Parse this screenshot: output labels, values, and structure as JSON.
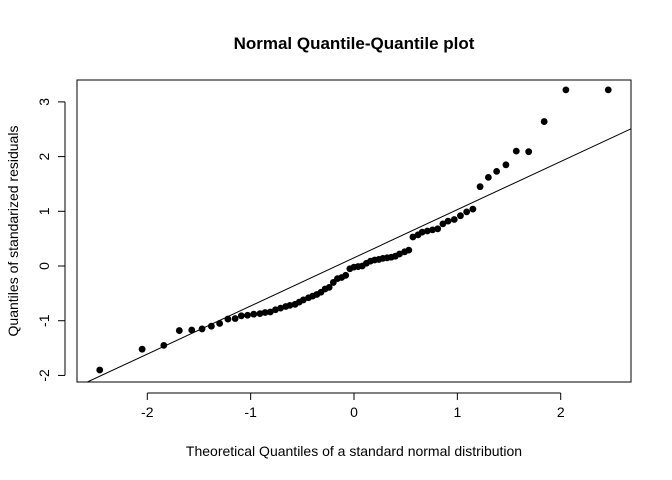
{
  "chart_data": {
    "type": "scatter",
    "title": "Normal Quantile-Quantile plot",
    "xlabel": "Theoretical Quantiles of a standard normal distribution",
    "ylabel": "Quantiles of standarized residuals",
    "xlim": [
      -2.68,
      2.68
    ],
    "ylim": [
      -2.12,
      3.4
    ],
    "xticks": [
      -2,
      -1,
      0,
      1,
      2
    ],
    "yticks": [
      -2,
      -1,
      0,
      1,
      2,
      3
    ],
    "xtick_labels": [
      "-2",
      "-1",
      "0",
      "1",
      "2"
    ],
    "ytick_labels": [
      "-2",
      "-1",
      "0",
      "1",
      "2",
      "3"
    ],
    "grid": false,
    "legend": "none",
    "point_color": "#000000",
    "line_color": "#000000",
    "reference_line": {
      "intercept": 0.15,
      "slope": 0.88
    },
    "points": {
      "x": [
        -2.46,
        -2.05,
        -1.84,
        -1.69,
        -1.57,
        -1.47,
        -1.38,
        -1.3,
        -1.22,
        -1.15,
        -1.09,
        -1.03,
        -0.97,
        -0.91,
        -0.86,
        -0.81,
        -0.76,
        -0.71,
        -0.66,
        -0.62,
        -0.57,
        -0.53,
        -0.49,
        -0.44,
        -0.4,
        -0.36,
        -0.32,
        -0.28,
        -0.24,
        -0.2,
        -0.16,
        -0.12,
        -0.08,
        -0.04,
        0.0,
        0.04,
        0.08,
        0.12,
        0.16,
        0.2,
        0.24,
        0.28,
        0.32,
        0.36,
        0.4,
        0.44,
        0.49,
        0.53,
        0.57,
        0.62,
        0.66,
        0.71,
        0.76,
        0.81,
        0.86,
        0.91,
        0.97,
        1.03,
        1.09,
        1.15,
        1.22,
        1.3,
        1.38,
        1.47,
        1.57,
        1.69,
        1.84,
        2.05,
        2.46
      ],
      "y": [
        -1.9,
        -1.52,
        -1.45,
        -1.18,
        -1.17,
        -1.15,
        -1.1,
        -1.05,
        -0.97,
        -0.96,
        -0.91,
        -0.9,
        -0.88,
        -0.87,
        -0.85,
        -0.84,
        -0.8,
        -0.77,
        -0.74,
        -0.72,
        -0.7,
        -0.66,
        -0.62,
        -0.58,
        -0.55,
        -0.52,
        -0.48,
        -0.42,
        -0.39,
        -0.3,
        -0.23,
        -0.21,
        -0.17,
        -0.05,
        -0.02,
        -0.01,
        0.0,
        0.05,
        0.09,
        0.11,
        0.12,
        0.14,
        0.15,
        0.16,
        0.18,
        0.22,
        0.26,
        0.29,
        0.53,
        0.57,
        0.62,
        0.64,
        0.66,
        0.68,
        0.77,
        0.82,
        0.85,
        0.92,
        0.99,
        1.04,
        1.45,
        1.62,
        1.73,
        1.85,
        2.1,
        2.09,
        2.64,
        3.22,
        3.22
      ]
    }
  }
}
